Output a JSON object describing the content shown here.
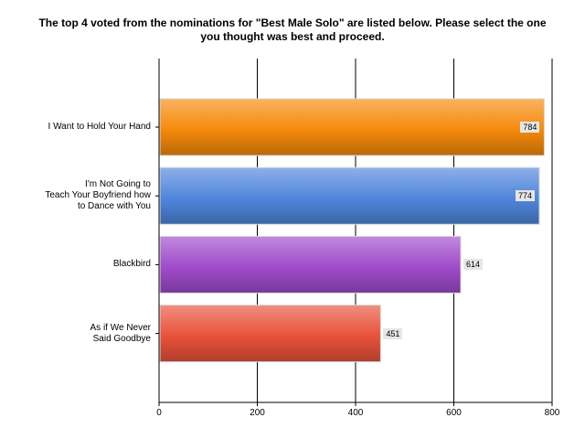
{
  "chart_data": {
    "type": "bar",
    "orientation": "horizontal",
    "title_lines": [
      "The top 4 voted from the nominations for \"Best Male Solo\" are listed below. Please select the one",
      "you thought was best and proceed."
    ],
    "categories": [
      "I Want to Hold Your Hand",
      "I'm Not Going to\nTeach Your Boyfriend how\nto Dance with You",
      "Blackbird",
      "As if We Never\nSaid Goodbye"
    ],
    "values": [
      784,
      774,
      614,
      451
    ],
    "colors": [
      "#f58a0a",
      "#4f86dc",
      "#a04bca",
      "#e8523a"
    ],
    "xlim": [
      0,
      800
    ],
    "xticks": [
      0,
      200,
      400,
      600,
      800
    ],
    "grid": true,
    "legend": "none"
  }
}
